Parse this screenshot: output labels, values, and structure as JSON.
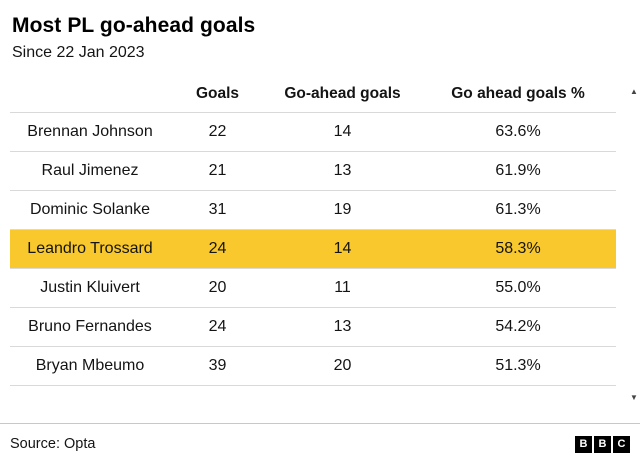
{
  "chart_data": {
    "type": "table",
    "title": "Most PL go-ahead goals",
    "subtitle": "Since 22 Jan 2023",
    "columns": [
      "Goals",
      "Go-ahead goals",
      "Go ahead goals %"
    ],
    "rows": [
      {
        "player": "Brennan Johnson",
        "goals": 22,
        "go_ahead_goals": 14,
        "go_ahead_pct": "63.6%"
      },
      {
        "player": "Raul Jimenez",
        "goals": 21,
        "go_ahead_goals": 13,
        "go_ahead_pct": "61.9%"
      },
      {
        "player": "Dominic Solanke",
        "goals": 31,
        "go_ahead_goals": 19,
        "go_ahead_pct": "61.3%"
      },
      {
        "player": "Leandro Trossard",
        "goals": 24,
        "go_ahead_goals": 14,
        "go_ahead_pct": "58.3%"
      },
      {
        "player": "Justin Kluivert",
        "goals": 20,
        "go_ahead_goals": 11,
        "go_ahead_pct": "55.0%"
      },
      {
        "player": "Bruno Fernandes",
        "goals": 24,
        "go_ahead_goals": 13,
        "go_ahead_pct": "54.2%"
      },
      {
        "player": "Bryan Mbeumo",
        "goals": 39,
        "go_ahead_goals": 20,
        "go_ahead_pct": "51.3%"
      }
    ],
    "highlighted_row": "Leandro Trossard",
    "highlight_color": "#f8c82d",
    "source": "Source: Opta"
  },
  "scrollbar": {
    "up_icon": "▲",
    "down_icon": "▼"
  },
  "logo": {
    "letters": [
      "B",
      "B",
      "C"
    ]
  }
}
